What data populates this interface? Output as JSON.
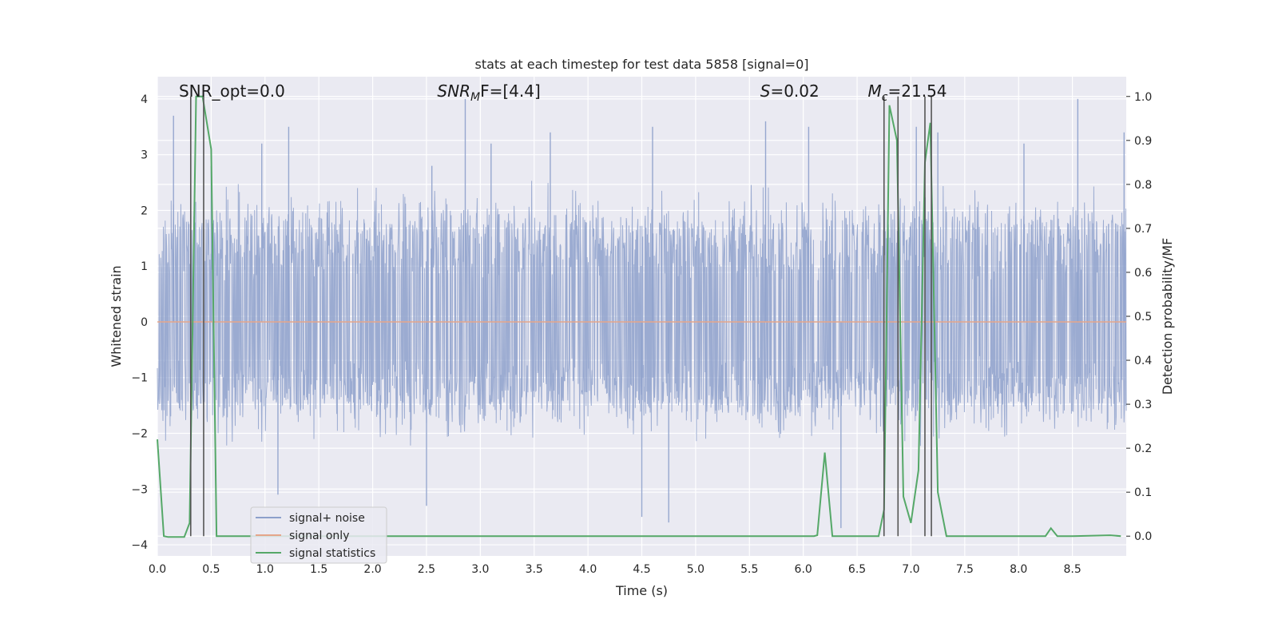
{
  "chart_data": {
    "type": "line",
    "title": "stats at each timestep for test data 5858 [signal=0]",
    "xlabel": "Time (s)",
    "ylabel": "Whitened strain",
    "ylabel_right": "Detection probability/MF",
    "xlim": [
      0.0,
      9.0
    ],
    "ylim": [
      -4.2,
      4.4
    ],
    "ylim_right": [
      -0.045,
      1.045
    ],
    "x_ticks": [
      "0.0",
      "0.5",
      "1.0",
      "1.5",
      "2.0",
      "2.5",
      "3.0",
      "3.5",
      "4.0",
      "4.5",
      "5.0",
      "5.5",
      "6.0",
      "6.5",
      "7.0",
      "7.5",
      "8.0",
      "8.5"
    ],
    "y_ticks": [
      "4",
      "3",
      "2",
      "1",
      "0",
      "−1",
      "−2",
      "−3",
      "−4"
    ],
    "y_ticks_right": [
      "1.0",
      "0.9",
      "0.8",
      "0.7",
      "0.6",
      "0.5",
      "0.4",
      "0.3",
      "0.2",
      "0.1",
      "0.0"
    ],
    "grid": true,
    "annotations": [
      {
        "text": "SNR_opt=0.0",
        "x": 0.2
      },
      {
        "base": "SNR",
        "sub": "M",
        "tail": "F=[4.4]",
        "x": 2.6
      },
      {
        "base": "S",
        "tail": "=0.02",
        "x": 5.6
      },
      {
        "base": "M",
        "sub": "c",
        "tail": "=21.54",
        "x": 6.6
      }
    ],
    "legend": {
      "placement": "lower-left",
      "entries": [
        "signal+ noise",
        "signal only",
        "signal statistics"
      ]
    },
    "series": [
      {
        "name": "signal+ noise",
        "color": "#8da0cb",
        "kind": "noise",
        "typical_range": [
          -1.5,
          1.8
        ],
        "spikes": [
          {
            "x": 0.15,
            "y": 3.7
          },
          {
            "x": 0.31,
            "y": 2.4
          },
          {
            "x": 0.5,
            "y": 2.8
          },
          {
            "x": 0.97,
            "y": 3.2
          },
          {
            "x": 1.12,
            "y": -3.1
          },
          {
            "x": 1.22,
            "y": 3.5
          },
          {
            "x": 2.55,
            "y": 2.8
          },
          {
            "x": 2.86,
            "y": 4.0
          },
          {
            "x": 2.5,
            "y": -3.3
          },
          {
            "x": 3.1,
            "y": 3.2
          },
          {
            "x": 3.65,
            "y": 3.4
          },
          {
            "x": 4.6,
            "y": 3.5
          },
          {
            "x": 4.5,
            "y": -3.5
          },
          {
            "x": 4.75,
            "y": -3.6
          },
          {
            "x": 5.65,
            "y": 3.6
          },
          {
            "x": 6.05,
            "y": 3.5
          },
          {
            "x": 6.35,
            "y": -3.7
          },
          {
            "x": 7.05,
            "y": 3.5
          },
          {
            "x": 7.25,
            "y": 3.4
          },
          {
            "x": 8.05,
            "y": 3.2
          },
          {
            "x": 8.55,
            "y": 4.0
          },
          {
            "x": 8.98,
            "y": 3.4
          }
        ]
      },
      {
        "name": "signal only",
        "color": "#e5a58a",
        "x": [
          0.0,
          9.0
        ],
        "y": [
          0.0,
          0.0
        ]
      },
      {
        "name": "signal statistics",
        "color": "#55a868",
        "axis": "right",
        "x": [
          0.0,
          0.06,
          0.1,
          0.25,
          0.3,
          0.36,
          0.42,
          0.5,
          0.55,
          0.6,
          6.1,
          6.13,
          6.2,
          6.27,
          6.32,
          6.7,
          6.75,
          6.8,
          6.87,
          6.93,
          7.0,
          7.07,
          7.13,
          7.18,
          7.25,
          7.33,
          8.25,
          8.3,
          8.36,
          8.5,
          8.85,
          8.95
        ],
        "y": [
          0.22,
          0.0,
          -0.002,
          -0.002,
          0.03,
          1.0,
          1.0,
          0.88,
          0.0,
          0.0,
          0.0,
          0.002,
          0.19,
          0.0,
          0.0,
          0.0,
          0.06,
          0.98,
          0.9,
          0.09,
          0.03,
          0.15,
          0.85,
          0.94,
          0.1,
          0.0,
          0.0,
          0.018,
          0.0,
          0.0,
          0.002,
          0.0
        ]
      }
    ],
    "vertical_markers": {
      "color": "#555555",
      "x": [
        0.31,
        0.43,
        6.75,
        6.88,
        7.13,
        7.19
      ],
      "y_range_right": [
        0.0,
        1.0
      ]
    }
  }
}
